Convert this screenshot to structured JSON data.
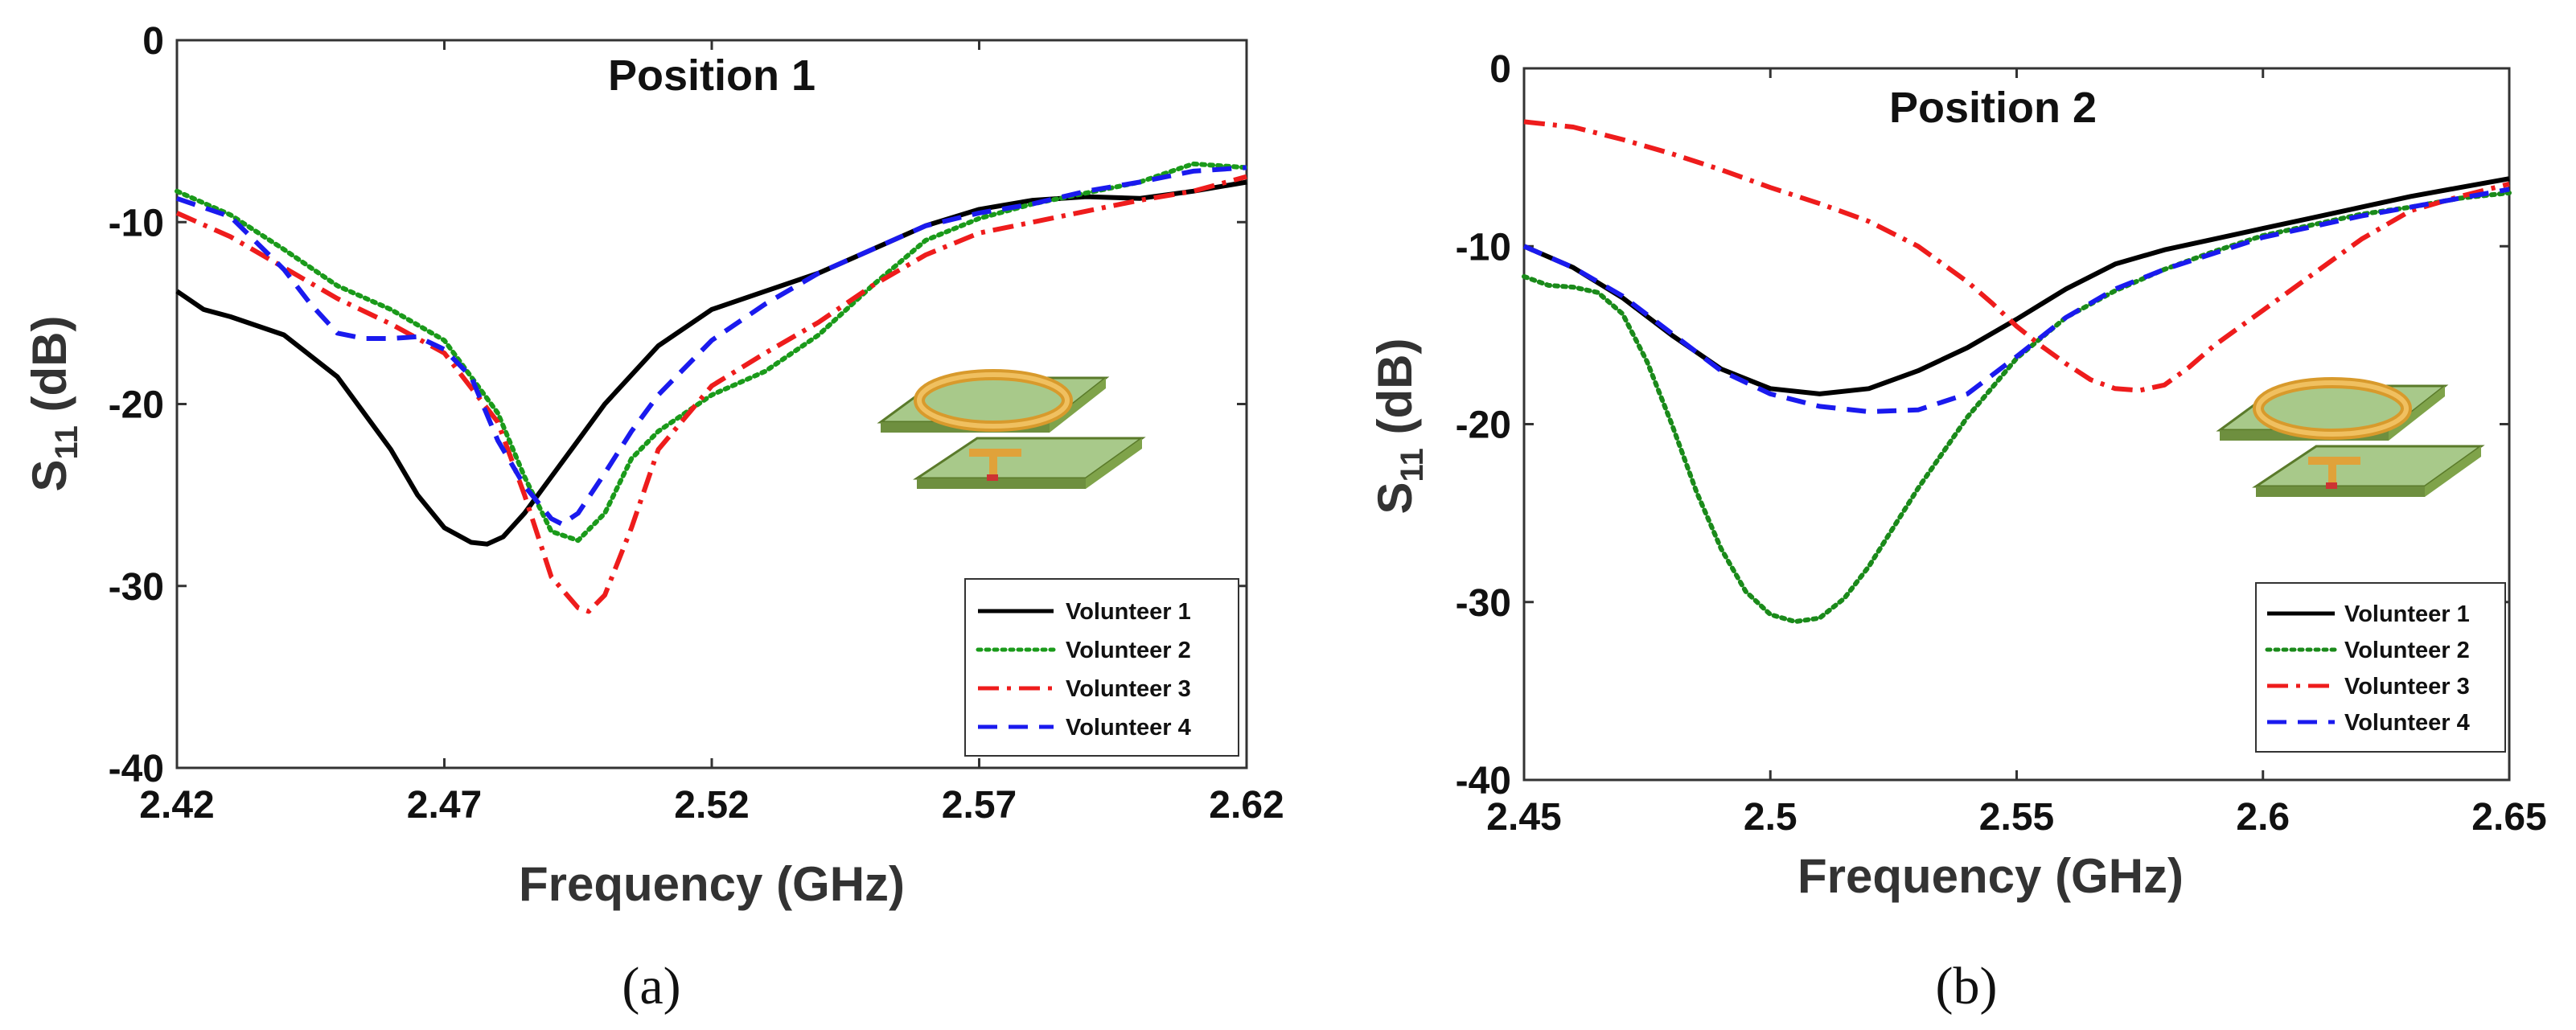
{
  "chart_data": [
    {
      "type": "line",
      "title": "Position 1",
      "panel_label": "(a)",
      "xlabel": "Frequency (GHz)",
      "ylabel": {
        "main": "S",
        "sub": "11",
        "unit": " (dB)"
      },
      "xlim": [
        2.42,
        2.62
      ],
      "ylim": [
        -40,
        0
      ],
      "xticks": [
        2.42,
        2.47,
        2.52,
        2.57,
        2.62
      ],
      "xtick_labels": [
        "2.42",
        "2.47",
        "2.52",
        "2.57",
        "2.62"
      ],
      "yticks": [
        0,
        -10,
        -20,
        -30,
        -40
      ],
      "ytick_labels": [
        "0",
        "-10",
        "-20",
        "-30",
        "-40"
      ],
      "grid": false,
      "legend_position": "bottom-right",
      "series": [
        {
          "name": "Volunteer 1",
          "color": "#000000",
          "dash": "solid",
          "x": [
            2.42,
            2.425,
            2.43,
            2.44,
            2.45,
            2.46,
            2.465,
            2.47,
            2.475,
            2.478,
            2.481,
            2.485,
            2.49,
            2.495,
            2.5,
            2.51,
            2.52,
            2.53,
            2.54,
            2.55,
            2.56,
            2.57,
            2.58,
            2.59,
            2.6,
            2.61,
            2.62
          ],
          "y": [
            -13.8,
            -14.8,
            -15.2,
            -16.2,
            -18.5,
            -22.5,
            -25.0,
            -26.8,
            -27.6,
            -27.7,
            -27.3,
            -26.0,
            -24.0,
            -22.0,
            -20.0,
            -16.8,
            -14.8,
            -13.8,
            -12.8,
            -11.5,
            -10.2,
            -9.3,
            -8.8,
            -8.6,
            -8.7,
            -8.3,
            -7.8
          ]
        },
        {
          "name": "Volunteer 2",
          "color": "#1a9a1a",
          "dash": "dotted",
          "x": [
            2.42,
            2.43,
            2.44,
            2.45,
            2.46,
            2.47,
            2.48,
            2.485,
            2.49,
            2.495,
            2.5,
            2.505,
            2.51,
            2.52,
            2.53,
            2.54,
            2.55,
            2.56,
            2.57,
            2.58,
            2.59,
            2.6,
            2.61,
            2.62
          ],
          "y": [
            -8.3,
            -9.6,
            -11.5,
            -13.5,
            -14.8,
            -16.5,
            -20.5,
            -24.0,
            -27.0,
            -27.5,
            -26.0,
            -23.0,
            -21.5,
            -19.5,
            -18.2,
            -16.2,
            -13.5,
            -11.0,
            -9.8,
            -9.0,
            -8.4,
            -7.8,
            -6.8,
            -7.0
          ]
        },
        {
          "name": "Volunteer 3",
          "color": "#ee1c1c",
          "dash": "dash-dot",
          "x": [
            2.42,
            2.43,
            2.44,
            2.45,
            2.46,
            2.47,
            2.48,
            2.485,
            2.49,
            2.495,
            2.497,
            2.5,
            2.505,
            2.51,
            2.52,
            2.53,
            2.54,
            2.55,
            2.56,
            2.57,
            2.58,
            2.59,
            2.6,
            2.61,
            2.62
          ],
          "y": [
            -9.5,
            -10.8,
            -12.5,
            -14.2,
            -15.6,
            -17.2,
            -21.0,
            -25.0,
            -29.5,
            -31.2,
            -31.4,
            -30.5,
            -26.8,
            -22.5,
            -19.0,
            -17.2,
            -15.5,
            -13.5,
            -11.8,
            -10.6,
            -10.0,
            -9.4,
            -8.8,
            -8.3,
            -7.5
          ]
        },
        {
          "name": "Volunteer 4",
          "color": "#1a1aee",
          "dash": "dashed",
          "x": [
            2.42,
            2.43,
            2.44,
            2.445,
            2.45,
            2.455,
            2.46,
            2.465,
            2.47,
            2.475,
            2.48,
            2.485,
            2.49,
            2.492,
            2.495,
            2.5,
            2.505,
            2.51,
            2.52,
            2.53,
            2.54,
            2.55,
            2.56,
            2.57,
            2.58,
            2.59,
            2.6,
            2.61,
            2.62
          ],
          "y": [
            -8.7,
            -9.7,
            -12.6,
            -14.5,
            -16.1,
            -16.4,
            -16.4,
            -16.3,
            -17.0,
            -18.5,
            -22.0,
            -24.5,
            -26.3,
            -26.6,
            -26.0,
            -23.8,
            -21.5,
            -19.5,
            -16.5,
            -14.5,
            -12.8,
            -11.5,
            -10.2,
            -9.5,
            -9.0,
            -8.3,
            -7.8,
            -7.2,
            -7.0
          ]
        }
      ]
    },
    {
      "type": "line",
      "title": "Position 2",
      "panel_label": "(b)",
      "xlabel": "Frequency (GHz)",
      "ylabel": {
        "main": "S",
        "sub": "11",
        "unit": " (dB)"
      },
      "xlim": [
        2.45,
        2.65
      ],
      "ylim": [
        -40,
        0
      ],
      "xticks": [
        2.45,
        2.5,
        2.55,
        2.6,
        2.65
      ],
      "xtick_labels": [
        "2.45",
        "2.5",
        "2.55",
        "2.6",
        "2.65"
      ],
      "yticks": [
        0,
        -10,
        -20,
        -30,
        -40
      ],
      "ytick_labels": [
        "0",
        "-10",
        "-20",
        "-30",
        "-40"
      ],
      "grid": false,
      "legend_position": "bottom-right",
      "series": [
        {
          "name": "Volunteer 1",
          "color": "#000000",
          "dash": "solid",
          "x": [
            2.45,
            2.46,
            2.47,
            2.48,
            2.49,
            2.5,
            2.51,
            2.52,
            2.53,
            2.54,
            2.55,
            2.56,
            2.57,
            2.58,
            2.59,
            2.6,
            2.61,
            2.62,
            2.63,
            2.64,
            2.65
          ],
          "y": [
            -10.0,
            -11.2,
            -12.9,
            -15.0,
            -16.9,
            -18.0,
            -18.3,
            -18.0,
            -17.0,
            -15.7,
            -14.1,
            -12.4,
            -11.0,
            -10.2,
            -9.6,
            -9.0,
            -8.4,
            -7.8,
            -7.2,
            -6.7,
            -6.2
          ]
        },
        {
          "name": "Volunteer 2",
          "color": "#1a8a1a",
          "dash": "dotted",
          "x": [
            2.45,
            2.455,
            2.46,
            2.465,
            2.47,
            2.475,
            2.48,
            2.485,
            2.49,
            2.495,
            2.5,
            2.505,
            2.51,
            2.515,
            2.52,
            2.525,
            2.53,
            2.54,
            2.55,
            2.56,
            2.57,
            2.58,
            2.59,
            2.6,
            2.61,
            2.62,
            2.63,
            2.64,
            2.65
          ],
          "y": [
            -11.7,
            -12.2,
            -12.3,
            -12.6,
            -13.8,
            -16.5,
            -20.0,
            -23.8,
            -27.0,
            -29.4,
            -30.7,
            -31.1,
            -30.9,
            -29.8,
            -28.0,
            -25.8,
            -23.6,
            -19.6,
            -16.3,
            -14.0,
            -12.5,
            -11.3,
            -10.3,
            -9.4,
            -8.8,
            -8.2,
            -7.8,
            -7.3,
            -7.0
          ]
        },
        {
          "name": "Volunteer 3",
          "color": "#ee1c1c",
          "dash": "dash-dot",
          "x": [
            2.45,
            2.46,
            2.47,
            2.48,
            2.49,
            2.5,
            2.51,
            2.52,
            2.53,
            2.54,
            2.545,
            2.55,
            2.555,
            2.56,
            2.565,
            2.57,
            2.575,
            2.58,
            2.585,
            2.59,
            2.6,
            2.61,
            2.62,
            2.63,
            2.64,
            2.65
          ],
          "y": [
            -3.0,
            -3.3,
            -4.0,
            -4.8,
            -5.7,
            -6.7,
            -7.6,
            -8.6,
            -10.0,
            -12.0,
            -13.2,
            -14.5,
            -15.6,
            -16.6,
            -17.5,
            -18.0,
            -18.1,
            -17.8,
            -16.8,
            -15.6,
            -13.6,
            -11.6,
            -9.6,
            -8.0,
            -7.2,
            -6.5
          ]
        },
        {
          "name": "Volunteer 4",
          "color": "#1a1aee",
          "dash": "dashed",
          "x": [
            2.45,
            2.46,
            2.47,
            2.48,
            2.49,
            2.5,
            2.51,
            2.52,
            2.53,
            2.54,
            2.55,
            2.56,
            2.57,
            2.58,
            2.59,
            2.6,
            2.61,
            2.62,
            2.63,
            2.64,
            2.65
          ],
          "y": [
            -10.0,
            -11.2,
            -12.8,
            -14.9,
            -17.0,
            -18.3,
            -19.0,
            -19.3,
            -19.2,
            -18.3,
            -16.2,
            -14.0,
            -12.4,
            -11.3,
            -10.4,
            -9.5,
            -8.9,
            -8.3,
            -7.8,
            -7.3,
            -6.8
          ]
        }
      ]
    }
  ]
}
